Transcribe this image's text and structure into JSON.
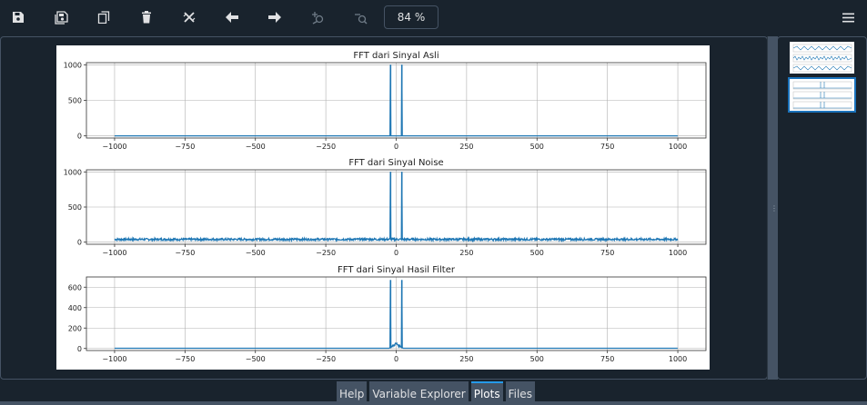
{
  "toolbar": {
    "buttons": [
      {
        "name": "save-icon",
        "label": "Save plot"
      },
      {
        "name": "save-all-icon",
        "label": "Save all plots"
      },
      {
        "name": "copy-icon",
        "label": "Copy plot"
      },
      {
        "name": "trash-icon",
        "label": "Remove plot"
      },
      {
        "name": "remove-all-icon",
        "label": "Remove all plots"
      },
      {
        "name": "arrow-left-icon",
        "label": "Previous plot"
      },
      {
        "name": "arrow-right-icon",
        "label": "Next plot"
      },
      {
        "name": "zoom-in-icon",
        "label": "Zoom in"
      },
      {
        "name": "zoom-out-icon",
        "label": "Zoom out"
      }
    ],
    "zoom_value": "84 %",
    "menu_icon": "hamburger-menu-icon"
  },
  "colors": {
    "background": "#19232d",
    "border": "#455364",
    "line": "#1f77b4",
    "accent": "#259ae9"
  },
  "bottom_tabs": [
    {
      "label": "Help",
      "active": false
    },
    {
      "label": "Variable Explorer",
      "active": false
    },
    {
      "label": "Plots",
      "active": true
    },
    {
      "label": "Files",
      "active": false
    }
  ],
  "chart_data": [
    {
      "type": "line",
      "title": "FFT dari Sinyal Asli",
      "xlim": [
        -1100,
        1100
      ],
      "ylim": [
        -30,
        1030
      ],
      "xticks": [
        -1000,
        -750,
        -500,
        -250,
        0,
        250,
        500,
        750,
        1000
      ],
      "xtick_labels": [
        "−1000",
        "−750",
        "−500",
        "−250",
        "0",
        "250",
        "500",
        "750",
        "1000"
      ],
      "yticks": [
        0,
        500,
        1000
      ],
      "ytick_labels": [
        "0",
        "500",
        "1000"
      ],
      "grid": true,
      "baseline": 0,
      "noise_amplitude": 0,
      "peaks": [
        {
          "x": -20,
          "y": 1000
        },
        {
          "x": 20,
          "y": 1000
        }
      ]
    },
    {
      "type": "line",
      "title": "FFT dari Sinyal Noise",
      "xlim": [
        -1100,
        1100
      ],
      "ylim": [
        -30,
        1030
      ],
      "xticks": [
        -1000,
        -750,
        -500,
        -250,
        0,
        250,
        500,
        750,
        1000
      ],
      "xtick_labels": [
        "−1000",
        "−750",
        "−500",
        "−250",
        "0",
        "250",
        "500",
        "750",
        "1000"
      ],
      "yticks": [
        0,
        500,
        1000
      ],
      "ytick_labels": [
        "0",
        "500",
        "1000"
      ],
      "grid": true,
      "baseline": 40,
      "noise_amplitude": 30,
      "peaks": [
        {
          "x": -20,
          "y": 1000
        },
        {
          "x": 20,
          "y": 1000
        }
      ]
    },
    {
      "type": "line",
      "title": "FFT dari Sinyal Hasil Filter",
      "xlim": [
        -1100,
        1100
      ],
      "ylim": [
        -20,
        700
      ],
      "xticks": [
        -1000,
        -750,
        -500,
        -250,
        0,
        250,
        500,
        750,
        1000
      ],
      "xtick_labels": [
        "−1000",
        "−750",
        "−500",
        "−250",
        "0",
        "250",
        "500",
        "750",
        "1000"
      ],
      "yticks": [
        0,
        200,
        400,
        600
      ],
      "ytick_labels": [
        "0",
        "200",
        "400",
        "600"
      ],
      "grid": true,
      "baseline": 2,
      "noise_amplitude": 0,
      "bump": {
        "center": 0,
        "width": 25,
        "height": 60
      },
      "peaks": [
        {
          "x": -20,
          "y": 670
        },
        {
          "x": 20,
          "y": 670
        }
      ]
    }
  ]
}
